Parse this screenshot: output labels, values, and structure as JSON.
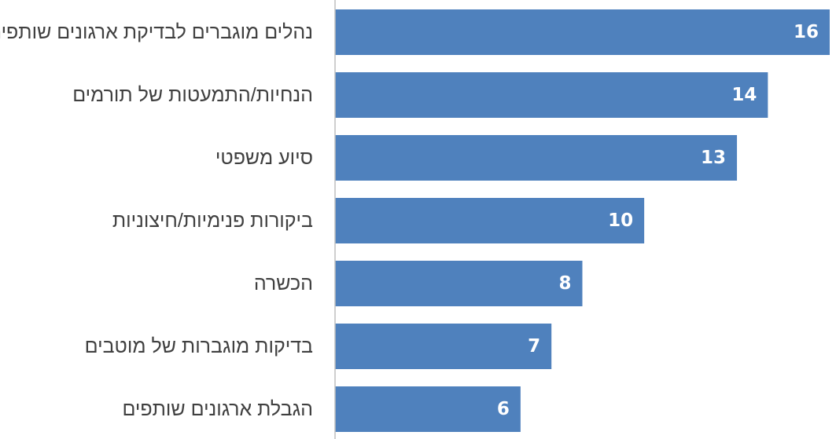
{
  "chart_data": {
    "type": "bar",
    "orientation": "horizontal",
    "categories": [
      "נהלים מוגברים לבדיקת ארגונים שותפים",
      "הנחיות/התמעטות של תורמים",
      "סיוע משפטי",
      "ביקורות פנימיות/חיצוניות",
      "הכשרה",
      "בדיקות מוגברות של מוטבים",
      "הגבלת ארגונים שותפים"
    ],
    "values": [
      16,
      14,
      13,
      10,
      8,
      7,
      6
    ],
    "title": "",
    "xlabel": "",
    "ylabel": "",
    "xlim": [
      0,
      16
    ],
    "grid": false,
    "legend": "none",
    "data_labels": "inside-end",
    "bar_color": "#4f81bd",
    "label_color": "#404040",
    "axis_color": "#bfbfbf"
  }
}
